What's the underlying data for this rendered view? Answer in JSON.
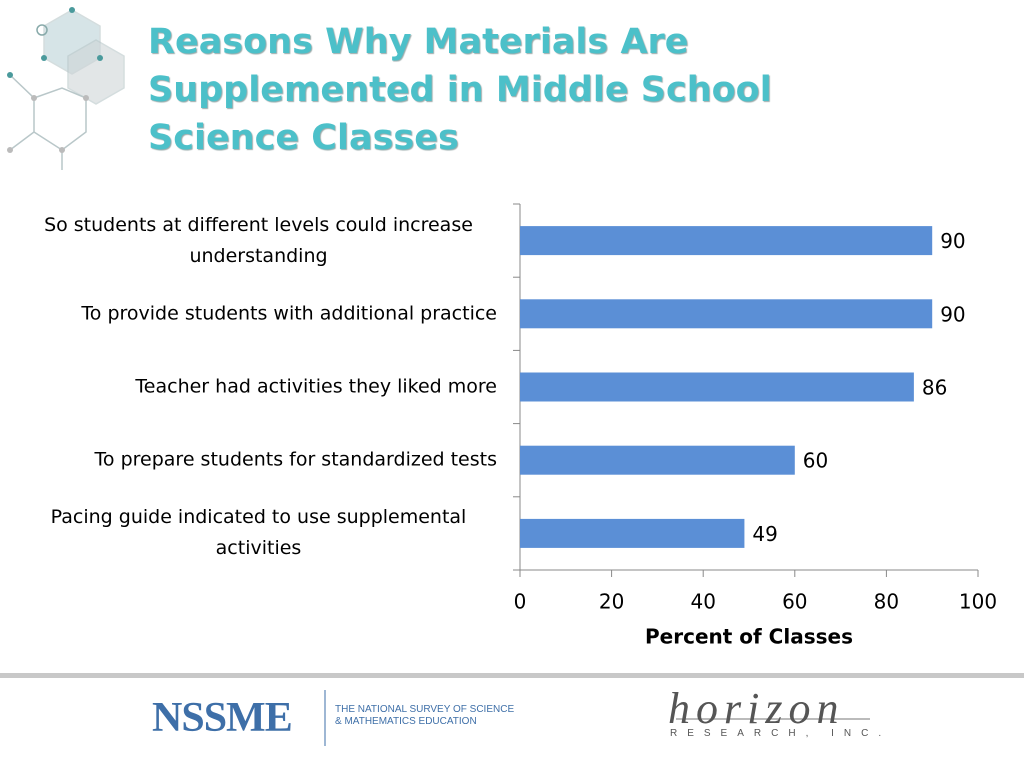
{
  "chart_data": {
    "type": "bar",
    "orientation": "horizontal",
    "title": "Reasons Why Materials Are Supplemented in Middle School Science Classes",
    "categories": [
      "So students at different levels could increase understanding",
      "To provide students with additional practice",
      "Teacher had activities they liked more",
      "To prepare students for standardized tests",
      "Pacing guide indicated to use supplemental activities"
    ],
    "values": [
      90,
      90,
      86,
      60,
      49
    ],
    "color": "#5b8fd6",
    "xlim": [
      0,
      100
    ],
    "xticks": [
      0,
      20,
      40,
      60,
      80,
      100
    ],
    "x_label": "Percent of Classes",
    "grid": false
  },
  "footer": {
    "logo": "NSSME",
    "logo_caption": "THE NATIONAL SURVEY OF SCIENCE & MATHEMATICS EDUCATION",
    "partner": "horizon",
    "partner_caption": "RESEARCH, INC."
  }
}
